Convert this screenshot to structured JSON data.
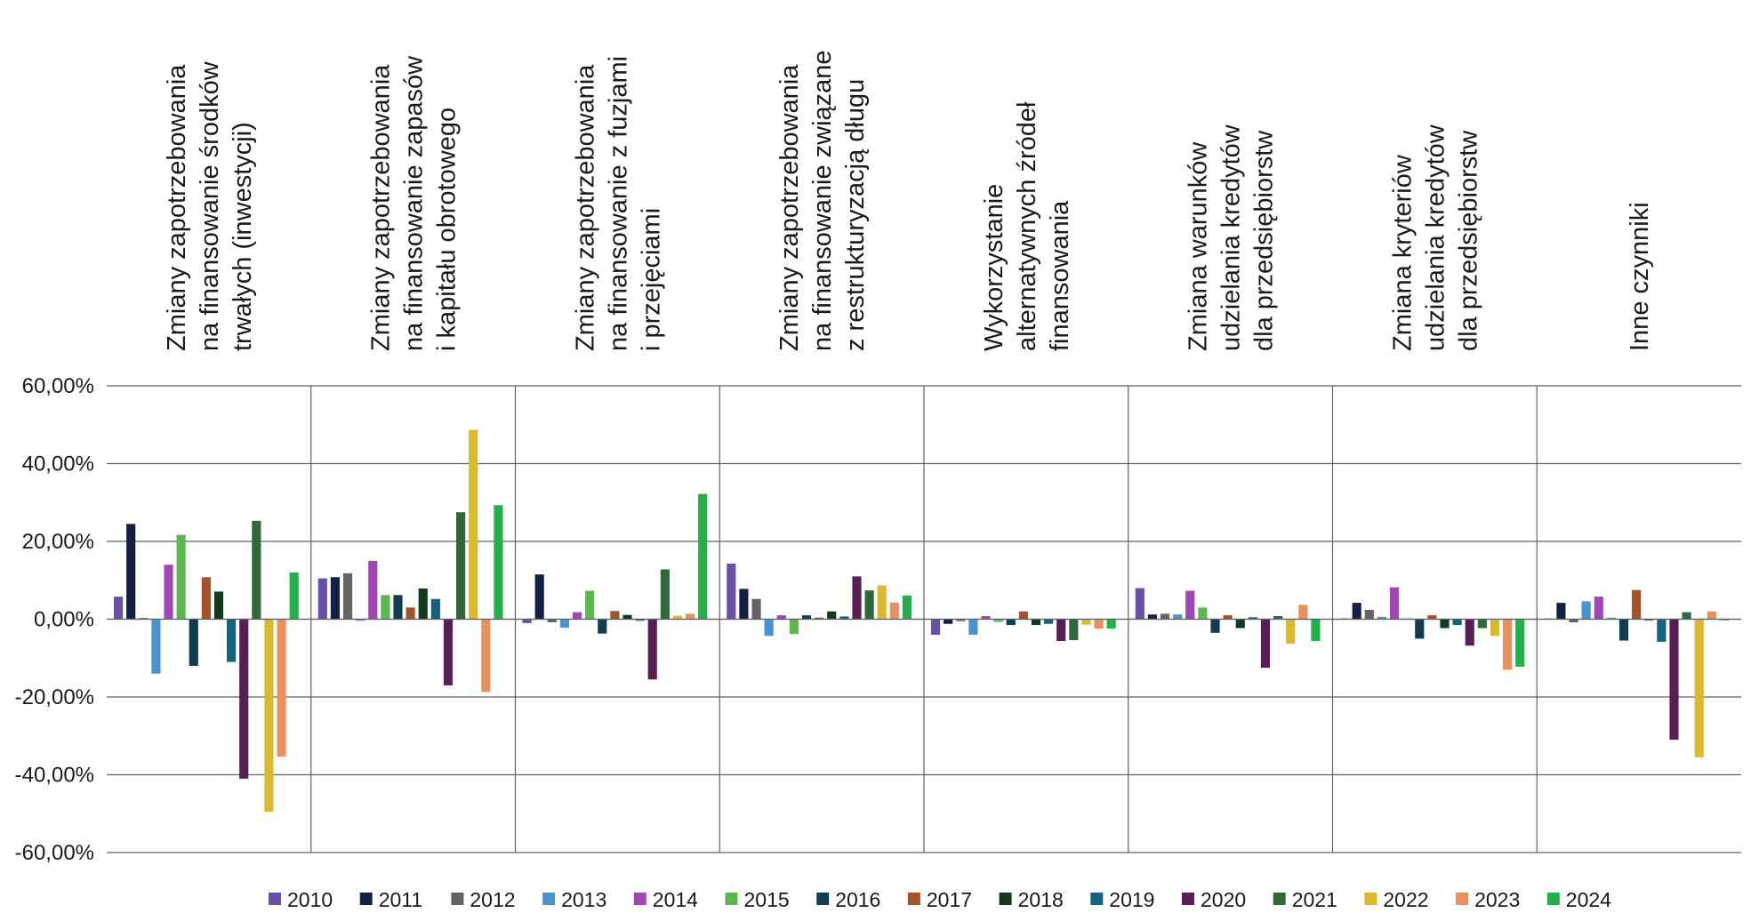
{
  "chart_data": {
    "type": "bar",
    "title": "",
    "xlabel": "",
    "ylabel": "",
    "ylim": [
      -60,
      60
    ],
    "ytick_format": "percent_2dp_comma",
    "yticks": [
      {
        "value": 60,
        "label": "60,00%"
      },
      {
        "value": 40,
        "label": "40,00%"
      },
      {
        "value": 20,
        "label": "20,00%"
      },
      {
        "value": 0,
        "label": "0,00%"
      },
      {
        "value": -20,
        "label": "-20,00%"
      },
      {
        "value": -40,
        "label": "-40,00%"
      },
      {
        "value": -60,
        "label": "-60,00%"
      }
    ],
    "grid": true,
    "legend_position": "bottom",
    "category_labels_position": "top-rotated",
    "categories": [
      [
        "Zmiany zapotrzebowania",
        "na finansowanie środków",
        "trwałych (inwestycji)"
      ],
      [
        "Zmiany zapotrzebowania",
        "na finansowanie zapasów",
        "i kapitału obrotowego"
      ],
      [
        "Zmiany zapotrzebowania",
        "na finansowanie z fuzjami",
        "i przejęciami"
      ],
      [
        "Zmiany zapotrzebowania",
        "na finansowanie związane",
        "z restrukturyzacją długu"
      ],
      [
        "Wykorzystanie",
        "alternatywnych źródeł",
        "finansowania"
      ],
      [
        "Zmiana warunków",
        "udzielania kredytów",
        "dla przedsiębiorstw"
      ],
      [
        "Zmiana kryteriów",
        "udzielania kredytów",
        "dla przedsiębiorstw"
      ],
      [
        "Inne czynniki"
      ]
    ],
    "series": [
      {
        "name": "2010",
        "color": "#6950a8",
        "values": [
          5.8,
          10.5,
          -1.0,
          14.3,
          -4.0,
          8.0,
          0.2,
          0.2
        ]
      },
      {
        "name": "2011",
        "color": "#132043",
        "values": [
          24.5,
          10.8,
          11.5,
          7.8,
          -1.2,
          1.2,
          4.2,
          4.2
        ]
      },
      {
        "name": "2012",
        "color": "#636466",
        "values": [
          0.3,
          11.8,
          -0.8,
          5.2,
          -0.5,
          1.4,
          2.4,
          -0.8
        ]
      },
      {
        "name": "2013",
        "color": "#4a93d1",
        "values": [
          -14.0,
          -0.4,
          -2.2,
          -4.3,
          -4.0,
          1.2,
          0.6,
          4.6
        ]
      },
      {
        "name": "2014",
        "color": "#a046b5",
        "values": [
          14.0,
          15.0,
          1.8,
          1.0,
          0.8,
          7.3,
          8.2,
          5.8
        ]
      },
      {
        "name": "2015",
        "color": "#5ab84e",
        "values": [
          21.7,
          6.2,
          7.3,
          -3.8,
          -0.7,
          3.0,
          0.2,
          0.4
        ]
      },
      {
        "name": "2016",
        "color": "#113d50",
        "values": [
          -12.0,
          6.2,
          -3.7,
          1.0,
          -1.5,
          -3.5,
          -5.0,
          -5.5
        ]
      },
      {
        "name": "2017",
        "color": "#a3522a",
        "values": [
          10.8,
          3.0,
          2.1,
          0.4,
          2.0,
          1.0,
          1.0,
          7.5
        ]
      },
      {
        "name": "2018",
        "color": "#113a1f",
        "values": [
          7.1,
          7.9,
          1.1,
          2.0,
          -1.5,
          -2.3,
          -2.3,
          -0.3
        ]
      },
      {
        "name": "2019",
        "color": "#12637c",
        "values": [
          -11.0,
          5.2,
          -0.4,
          0.7,
          -1.2,
          0.5,
          -1.5,
          -5.8
        ]
      },
      {
        "name": "2020",
        "color": "#5a1e57",
        "values": [
          -41.0,
          -17.0,
          -15.5,
          11.0,
          -5.6,
          -12.5,
          -6.8,
          -31.0
        ]
      },
      {
        "name": "2021",
        "color": "#31683a",
        "values": [
          25.3,
          27.5,
          12.8,
          7.4,
          -5.4,
          0.8,
          -2.3,
          1.8
        ]
      },
      {
        "name": "2022",
        "color": "#dcb92c",
        "values": [
          -49.5,
          48.7,
          0.9,
          8.7,
          -1.4,
          -6.3,
          -4.3,
          -35.5
        ]
      },
      {
        "name": "2023",
        "color": "#e8905e",
        "values": [
          -35.3,
          -18.7,
          1.4,
          4.3,
          -2.4,
          3.7,
          -13.0,
          2.0
        ]
      },
      {
        "name": "2024",
        "color": "#23b04c",
        "values": [
          12.0,
          29.3,
          32.2,
          6.1,
          -2.4,
          -5.6,
          -12.2,
          -0.3
        ]
      }
    ]
  }
}
